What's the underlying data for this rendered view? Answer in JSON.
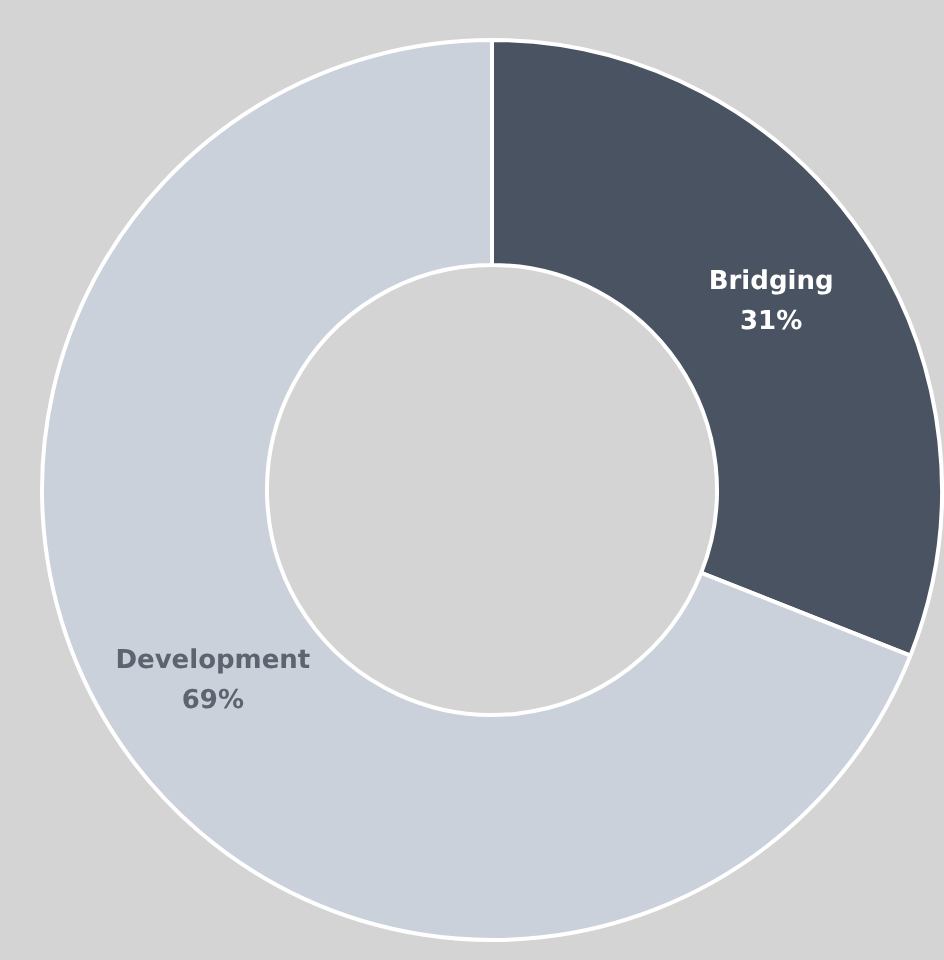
{
  "chart_data": {
    "type": "donut",
    "categories": [
      "Bridging",
      "Development"
    ],
    "values": [
      31,
      69
    ],
    "colors": [
      "#4a5361",
      "#cad1da"
    ],
    "value_labels": [
      "31%",
      "69%"
    ],
    "legend": false
  }
}
